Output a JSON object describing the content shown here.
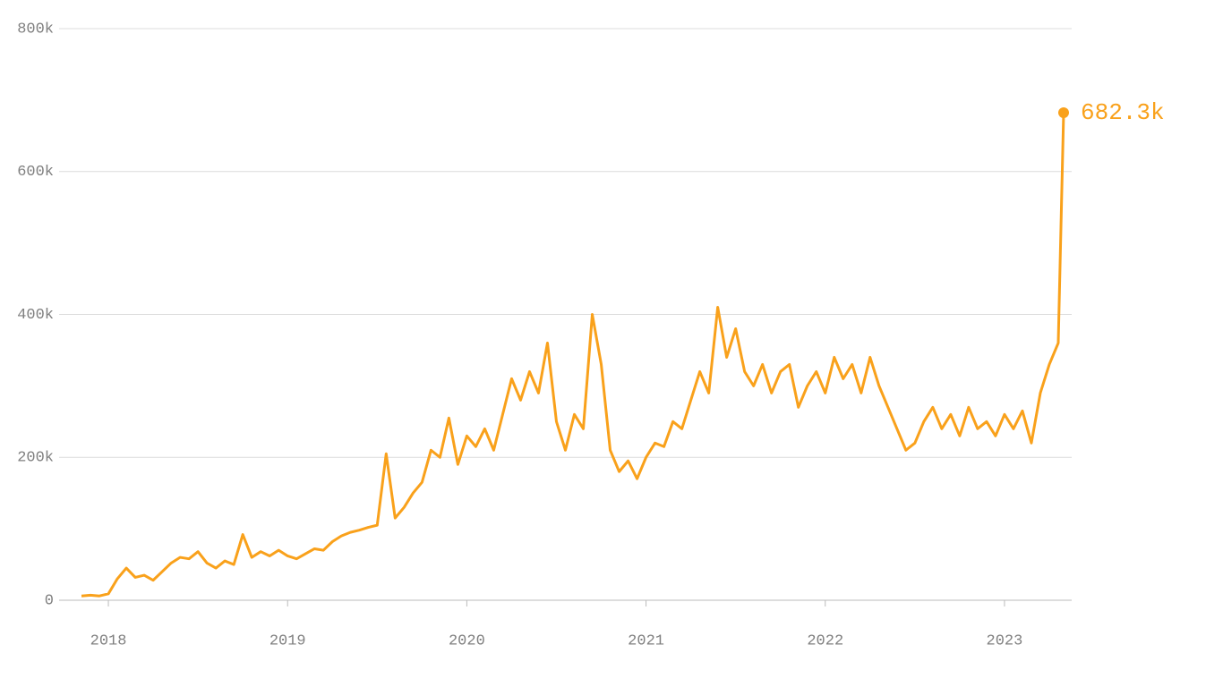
{
  "chart_data": {
    "type": "line",
    "x": [
      2017.85,
      2017.9,
      2017.95,
      2018.0,
      2018.05,
      2018.1,
      2018.15,
      2018.2,
      2018.25,
      2018.3,
      2018.35,
      2018.4,
      2018.45,
      2018.5,
      2018.55,
      2018.6,
      2018.65,
      2018.7,
      2018.75,
      2018.8,
      2018.85,
      2018.9,
      2018.95,
      2019.0,
      2019.05,
      2019.1,
      2019.15,
      2019.2,
      2019.25,
      2019.3,
      2019.35,
      2019.4,
      2019.45,
      2019.5,
      2019.55,
      2019.6,
      2019.65,
      2019.7,
      2019.75,
      2019.8,
      2019.85,
      2019.9,
      2019.95,
      2020.0,
      2020.05,
      2020.1,
      2020.15,
      2020.2,
      2020.25,
      2020.3,
      2020.35,
      2020.4,
      2020.45,
      2020.5,
      2020.55,
      2020.6,
      2020.65,
      2020.7,
      2020.75,
      2020.8,
      2020.85,
      2020.9,
      2020.95,
      2021.0,
      2021.05,
      2021.1,
      2021.15,
      2021.2,
      2021.25,
      2021.3,
      2021.35,
      2021.4,
      2021.45,
      2021.5,
      2021.55,
      2021.6,
      2021.65,
      2021.7,
      2021.75,
      2021.8,
      2021.85,
      2021.9,
      2021.95,
      2022.0,
      2022.05,
      2022.1,
      2022.15,
      2022.2,
      2022.25,
      2022.3,
      2022.35,
      2022.4,
      2022.45,
      2022.5,
      2022.55,
      2022.6,
      2022.65,
      2022.7,
      2022.75,
      2022.8,
      2022.85,
      2022.9,
      2022.95,
      2023.0,
      2023.05,
      2023.1,
      2023.15,
      2023.2,
      2023.25,
      2023.3,
      2023.33
    ],
    "series": [
      {
        "color": "#f9a11b",
        "last_label": "682.3k",
        "values": [
          6000,
          7000,
          6000,
          9000,
          30000,
          45000,
          32000,
          35000,
          28000,
          40000,
          52000,
          60000,
          58000,
          68000,
          52000,
          45000,
          55000,
          50000,
          92000,
          60000,
          68000,
          62000,
          70000,
          62000,
          58000,
          65000,
          72000,
          70000,
          82000,
          90000,
          95000,
          98000,
          102000,
          105000,
          205000,
          115000,
          130000,
          150000,
          165000,
          210000,
          200000,
          255000,
          190000,
          230000,
          215000,
          240000,
          210000,
          260000,
          310000,
          280000,
          320000,
          290000,
          360000,
          250000,
          210000,
          260000,
          240000,
          400000,
          330000,
          210000,
          180000,
          195000,
          170000,
          200000,
          220000,
          215000,
          250000,
          240000,
          280000,
          320000,
          290000,
          410000,
          340000,
          380000,
          320000,
          300000,
          330000,
          290000,
          320000,
          330000,
          270000,
          300000,
          320000,
          290000,
          340000,
          310000,
          330000,
          290000,
          340000,
          300000,
          270000,
          240000,
          210000,
          220000,
          250000,
          270000,
          240000,
          260000,
          230000,
          270000,
          240000,
          250000,
          230000,
          260000,
          240000,
          265000,
          220000,
          290000,
          330000,
          360000,
          682300
        ]
      }
    ],
    "xlim": [
      2017.725,
      2023.375
    ],
    "xticks": [
      2018,
      2019,
      2020,
      2021,
      2022,
      2023
    ],
    "ylim": [
      0,
      800000
    ],
    "yticks": [
      0,
      {
        "value": 200000,
        "label": "200k"
      },
      {
        "value": 400000,
        "label": "400k"
      },
      {
        "value": 600000,
        "label": "600k"
      },
      {
        "value": 800000,
        "label": "800k"
      }
    ],
    "grid": true
  }
}
